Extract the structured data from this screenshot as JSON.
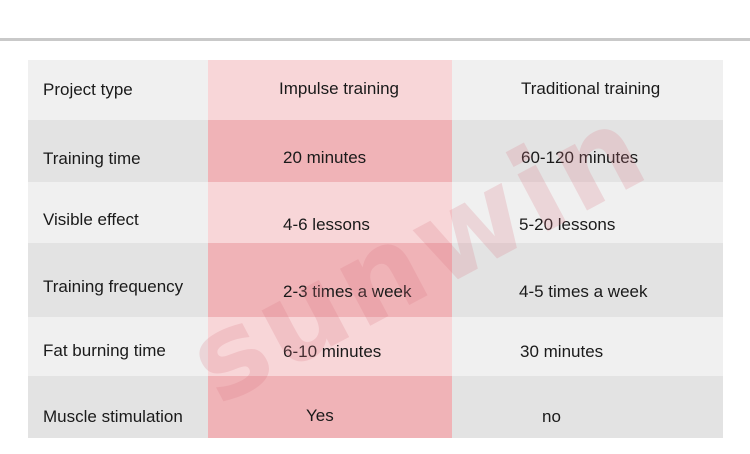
{
  "colors": {
    "row_gray_dark": "#e3e3e3",
    "row_gray_light": "#f0f0f0",
    "pink_dark": "#f0b3b7",
    "pink_light": "#f8d6d8"
  },
  "table": {
    "header": {
      "label": "Project type",
      "impulse": "Impulse training",
      "traditional": "Traditional training"
    },
    "rows": [
      {
        "label": "Training time",
        "impulse": "20 minutes",
        "traditional": "60-120 minutes"
      },
      {
        "label": "Visible effect",
        "impulse": "4-6 lessons",
        "traditional": "5-20 lessons"
      },
      {
        "label": "Training frequency",
        "impulse": "2-3 times a week",
        "traditional": "4-5 times a week"
      },
      {
        "label": "Fat burning time",
        "impulse": "6-10 minutes",
        "traditional": "30 minutes"
      },
      {
        "label": "Muscle stimulation",
        "impulse": "Yes",
        "traditional": "no"
      }
    ]
  },
  "watermark": "sunwin"
}
